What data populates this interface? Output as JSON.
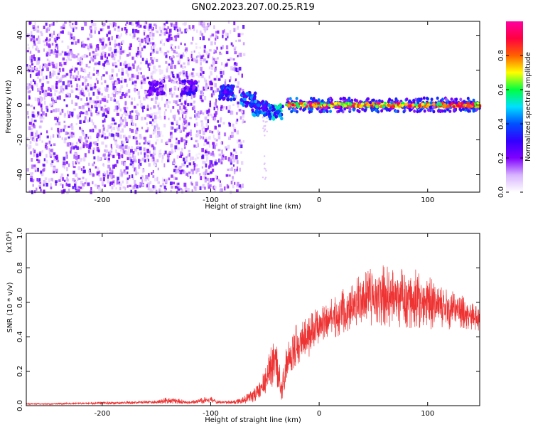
{
  "title": "GN02.2023.207.00.25.R19",
  "chart_data": [
    {
      "type": "heatmap",
      "xlabel": "Height of straight line (km)",
      "ylabel": "Frequency (Hz)",
      "xlim": [
        -270,
        148
      ],
      "ylim": [
        -50,
        48
      ],
      "x_ticks": [
        -200,
        -100,
        0,
        100
      ],
      "y_ticks": [
        -40,
        -20,
        0,
        20,
        40
      ],
      "colorbar": {
        "label": "Normalized spectral amplitude",
        "range": [
          0.0,
          1.0
        ],
        "ticks": [
          "0.0",
          "0.2",
          "0.4",
          "0.6",
          "0.8"
        ],
        "colors": [
          "#ffffff",
          "#d8b4ff",
          "#8000ff",
          "#3300ff",
          "#0050ff",
          "#00e0ff",
          "#00ff40",
          "#ffff00",
          "#ff6000",
          "#ff0040",
          "#ff00a0"
        ]
      },
      "regions": [
        {
          "x_range": [
            -270,
            -75
          ],
          "freq_range": [
            -50,
            48
          ],
          "amplitude": "0.05-0.25 (noise)"
        },
        {
          "x": -150,
          "freq": 10,
          "amplitude": 0.25
        },
        {
          "x": -120,
          "freq": 10,
          "amplitude": 0.3
        },
        {
          "x": -85,
          "freq": 7,
          "amplitude": 0.4
        },
        {
          "x": -65,
          "freq": 3,
          "amplitude": 0.45
        },
        {
          "x": -55,
          "freq": -2,
          "amplitude": 0.45
        },
        {
          "x": -40,
          "freq": -4,
          "amplitude": 0.55
        }
      ],
      "ridge": {
        "x": [
          -30,
          148
        ],
        "freq": 0,
        "amplitude": "0.8-1.0"
      }
    },
    {
      "type": "line",
      "xlabel": "Height of straight line (km)",
      "ylabel": "SNR (10 * v/v)",
      "y_multiplier": "(x10⁴)",
      "xlim": [
        -270,
        148
      ],
      "ylim": [
        0.0,
        1.0
      ],
      "x_ticks": [
        -200,
        -100,
        0,
        100
      ],
      "y_ticks": [
        "0.0",
        "0.2",
        "0.4",
        "0.6",
        "0.8",
        "1.0"
      ],
      "series": [
        {
          "color": "#ee3333",
          "x": [
            -270,
            -250,
            -200,
            -150,
            -140,
            -120,
            -105,
            -100,
            -95,
            -80,
            -70,
            -60,
            -55,
            -48,
            -45,
            -40,
            -35,
            -30,
            -25,
            -20,
            -15,
            -10,
            -5,
            0,
            5,
            10,
            15,
            20,
            25,
            30,
            35,
            40,
            50,
            60,
            70,
            80,
            90,
            100,
            110,
            120,
            130,
            140,
            148
          ],
          "y": [
            0.01,
            0.01,
            0.015,
            0.02,
            0.03,
            0.02,
            0.03,
            0.04,
            0.02,
            0.02,
            0.03,
            0.06,
            0.1,
            0.15,
            0.22,
            0.25,
            0.1,
            0.25,
            0.32,
            0.36,
            0.38,
            0.4,
            0.43,
            0.47,
            0.48,
            0.5,
            0.52,
            0.54,
            0.57,
            0.58,
            0.6,
            0.62,
            0.63,
            0.64,
            0.62,
            0.63,
            0.62,
            0.6,
            0.58,
            0.56,
            0.55,
            0.52,
            0.5
          ],
          "noise_amplitude": [
            0.005,
            0.005,
            0.008,
            0.01,
            0.02,
            0.01,
            0.02,
            0.02,
            0.01,
            0.01,
            0.02,
            0.04,
            0.06,
            0.1,
            0.12,
            0.14,
            0.08,
            0.12,
            0.12,
            0.12,
            0.12,
            0.12,
            0.12,
            0.12,
            0.12,
            0.12,
            0.13,
            0.13,
            0.14,
            0.14,
            0.15,
            0.16,
            0.17,
            0.18,
            0.18,
            0.18,
            0.17,
            0.16,
            0.14,
            0.12,
            0.1,
            0.08,
            0.07
          ]
        }
      ]
    }
  ]
}
